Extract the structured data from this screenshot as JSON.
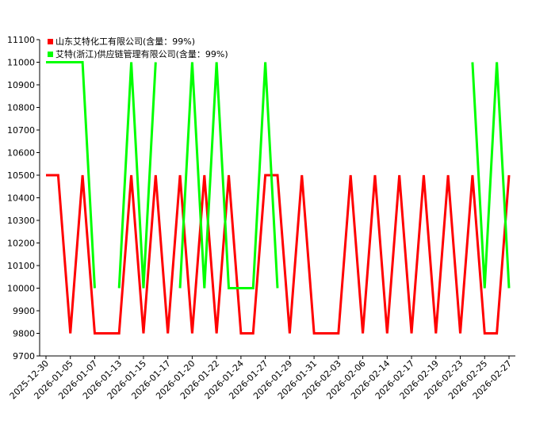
{
  "chart_data": {
    "type": "line",
    "categories": [
      "2025-12-30",
      null,
      "2026-01-05",
      null,
      "2026-01-07",
      null,
      "2026-01-13",
      null,
      "2026-01-15",
      null,
      "2026-01-17",
      null,
      "2026-01-20",
      null,
      "2026-01-22",
      null,
      "2026-01-24",
      null,
      "2026-01-27",
      null,
      "2026-01-29",
      null,
      "2026-01-31",
      null,
      "2026-02-03",
      null,
      "2026-02-06",
      null,
      "2026-02-14",
      null,
      "2026-02-17",
      null,
      "2026-02-19",
      null,
      "2026-02-23",
      null,
      "2026-02-25",
      null,
      "2026-02-27"
    ],
    "series": [
      {
        "name": "山东艾特化工有限公司(含量：99%)",
        "color": "#ff0000",
        "values": [
          10500,
          10500,
          9800,
          10500,
          9800,
          9800,
          9800,
          10500,
          9800,
          10500,
          9800,
          10500,
          9800,
          10500,
          9800,
          10500,
          9800,
          9800,
          10500,
          10500,
          9800,
          10500,
          9800,
          9800,
          9800,
          10500,
          9800,
          10500,
          9800,
          10500,
          9800,
          10500,
          9800,
          10500,
          9800,
          10500,
          9800,
          9800,
          10500
        ]
      },
      {
        "name": "艾特(浙江)供应链管理有限公司(含量：99%)",
        "color": "#00ff00",
        "values": [
          11000,
          11000,
          11000,
          11000,
          10000,
          null,
          10000,
          11000,
          10000,
          11000,
          null,
          10000,
          11000,
          10000,
          11000,
          10000,
          10000,
          10000,
          11000,
          10000,
          null,
          null,
          null,
          null,
          null,
          null,
          null,
          null,
          null,
          null,
          null,
          null,
          null,
          null,
          null,
          11000,
          10000,
          11000,
          10000
        ]
      }
    ],
    "ylim": [
      9700,
      11100
    ],
    "yticks": [
      9700,
      9800,
      9900,
      10000,
      10100,
      10200,
      10300,
      10400,
      10500,
      10600,
      10700,
      10800,
      10900,
      11000,
      11100
    ]
  }
}
